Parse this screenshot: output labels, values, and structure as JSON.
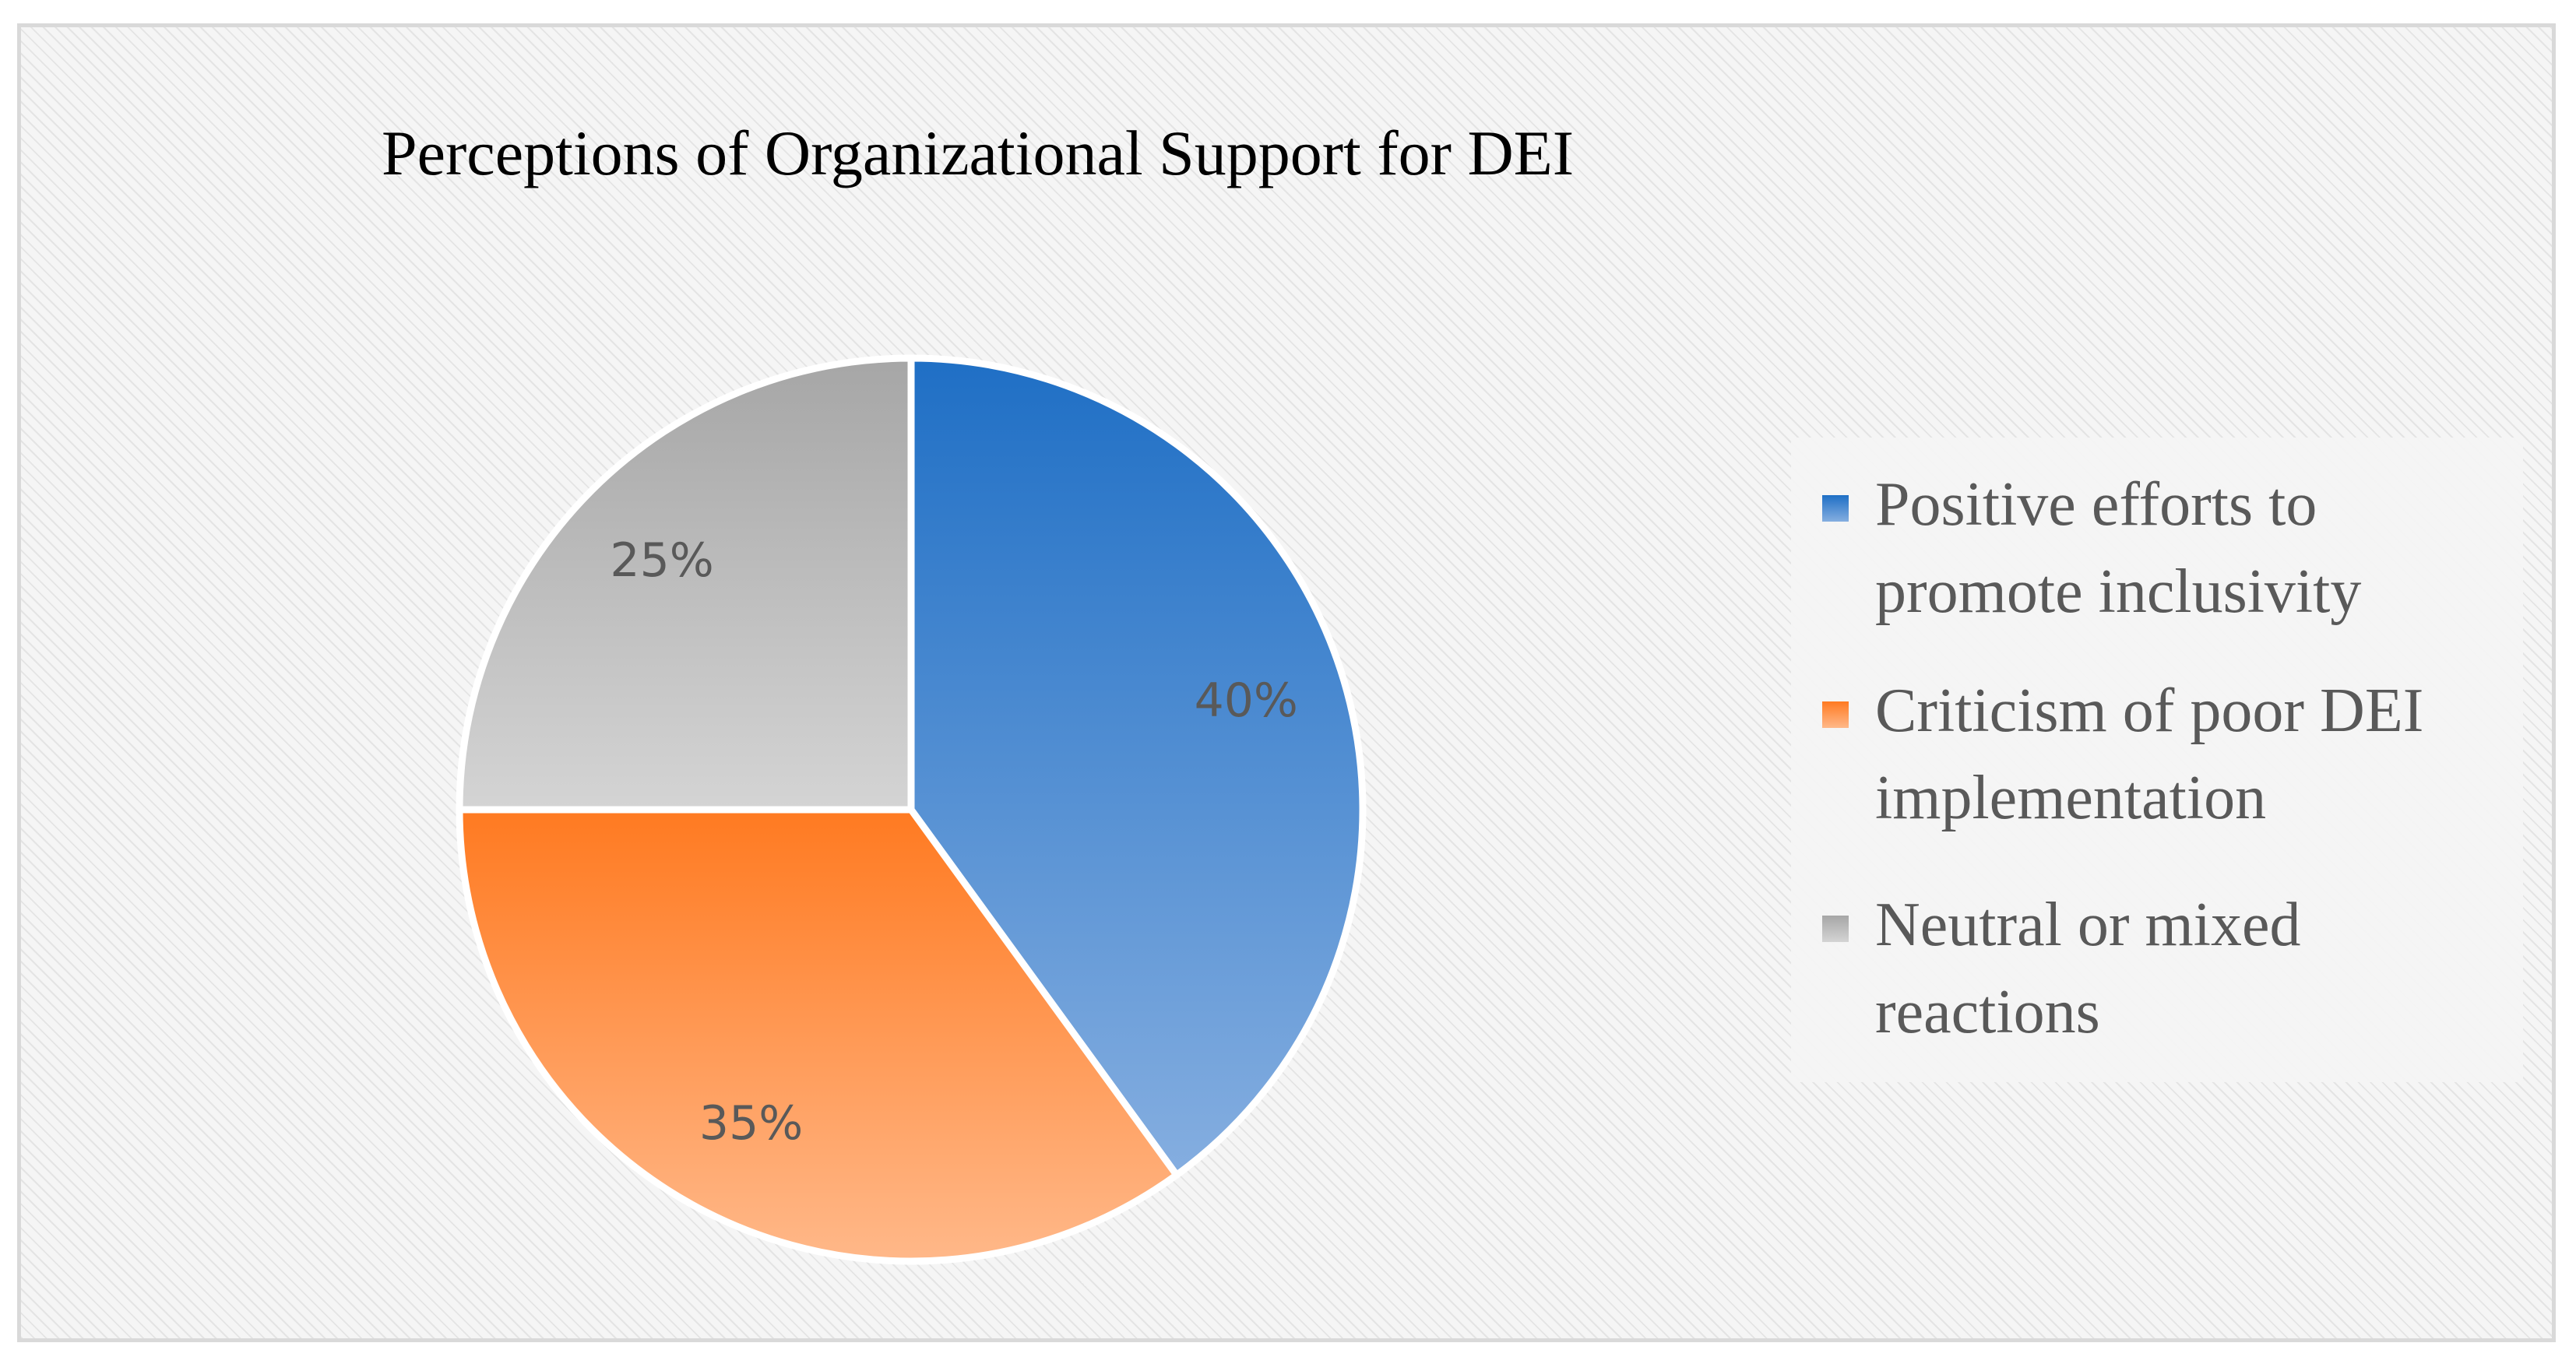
{
  "chart_data": {
    "type": "pie",
    "title": "Perceptions of Organizational Support for DEI",
    "categories": [
      "Positive efforts to promote inclusivity",
      "Criticism of poor DEI implementation",
      "Neutral or mixed reactions"
    ],
    "values": [
      40,
      35,
      25
    ],
    "value_labels": [
      "40%",
      "35%",
      "25%"
    ],
    "legend_placement": "right",
    "colors": {
      "positive": [
        "#1f6fc5",
        "#85aee0"
      ],
      "criticism": [
        "#ff7a21",
        "#ffb889"
      ],
      "neutral": [
        "#a6a6a6",
        "#d4d4d4"
      ]
    }
  }
}
